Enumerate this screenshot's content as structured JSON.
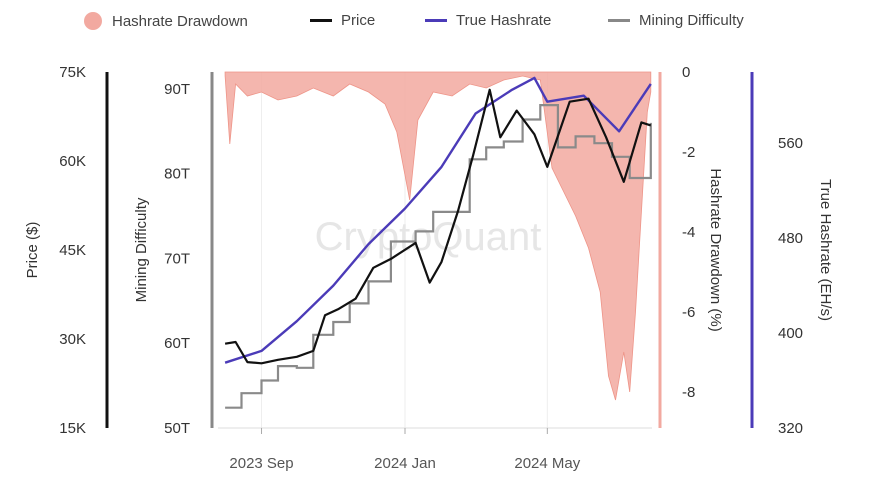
{
  "chart_data": {
    "type": "line",
    "watermark": "CryptoQuant",
    "legend": [
      {
        "name": "Hashrate Drawdown",
        "color": "#f2a9a0",
        "marker": "dot"
      },
      {
        "name": "Price",
        "color": "#111111",
        "marker": "line"
      },
      {
        "name": "True Hashrate",
        "color": "#4b3bb8",
        "marker": "line"
      },
      {
        "name": "Mining Difficulty",
        "color": "#888888",
        "marker": "line"
      }
    ],
    "x_ticks": [
      "2023 Sep",
      "2024 Jan",
      "2024 May"
    ],
    "axes": {
      "price": {
        "label": "Price ($)",
        "range": [
          15000,
          75000
        ],
        "ticks": [
          "15K",
          "30K",
          "45K",
          "60K",
          "75K"
        ],
        "color": "#111111"
      },
      "difficulty": {
        "label": "Mining Difficulty",
        "range": [
          50,
          92
        ],
        "unit": "T",
        "ticks": [
          "50T",
          "60T",
          "70T",
          "80T",
          "90T"
        ],
        "color": "#888888"
      },
      "drawdown": {
        "label": "Hashrate Drawdown (%)",
        "range": [
          -8.9,
          0
        ],
        "ticks": [
          "0",
          "-2",
          "-4",
          "-6",
          "-8"
        ],
        "color": "#f2a9a0"
      },
      "hashrate": {
        "label": "True Hashrate (EH/s)",
        "range": [
          320,
          620
        ],
        "ticks": [
          "320",
          "400",
          "480",
          "560"
        ],
        "color": "#4b3bb8"
      }
    },
    "series": {
      "price": [
        {
          "date": "2023-08-01",
          "value": 29200
        },
        {
          "date": "2023-08-10",
          "value": 29500
        },
        {
          "date": "2023-08-20",
          "value": 26100
        },
        {
          "date": "2023-09-01",
          "value": 25900
        },
        {
          "date": "2023-09-15",
          "value": 26500
        },
        {
          "date": "2023-10-01",
          "value": 27000
        },
        {
          "date": "2023-10-15",
          "value": 28000
        },
        {
          "date": "2023-10-25",
          "value": 34000
        },
        {
          "date": "2023-11-05",
          "value": 35000
        },
        {
          "date": "2023-11-20",
          "value": 36800
        },
        {
          "date": "2023-12-05",
          "value": 42000
        },
        {
          "date": "2023-12-20",
          "value": 43500
        },
        {
          "date": "2024-01-10",
          "value": 46200
        },
        {
          "date": "2024-01-22",
          "value": 39500
        },
        {
          "date": "2024-02-01",
          "value": 43000
        },
        {
          "date": "2024-02-15",
          "value": 51500
        },
        {
          "date": "2024-02-28",
          "value": 61000
        },
        {
          "date": "2024-03-13",
          "value": 72000
        },
        {
          "date": "2024-03-22",
          "value": 64000
        },
        {
          "date": "2024-04-05",
          "value": 68500
        },
        {
          "date": "2024-04-20",
          "value": 64500
        },
        {
          "date": "2024-05-01",
          "value": 59000
        },
        {
          "date": "2024-05-20",
          "value": 70000
        },
        {
          "date": "2024-06-05",
          "value": 70500
        },
        {
          "date": "2024-06-20",
          "value": 64000
        },
        {
          "date": "2024-07-05",
          "value": 56500
        },
        {
          "date": "2024-07-20",
          "value": 66500
        },
        {
          "date": "2024-07-28",
          "value": 66000
        }
      ],
      "true_hashrate": [
        {
          "date": "2023-08-01",
          "value": 375
        },
        {
          "date": "2023-09-01",
          "value": 385
        },
        {
          "date": "2023-10-01",
          "value": 410
        },
        {
          "date": "2023-11-01",
          "value": 440
        },
        {
          "date": "2023-12-01",
          "value": 475
        },
        {
          "date": "2024-01-01",
          "value": 505
        },
        {
          "date": "2024-02-01",
          "value": 540
        },
        {
          "date": "2024-03-01",
          "value": 585
        },
        {
          "date": "2024-04-01",
          "value": 605
        },
        {
          "date": "2024-04-20",
          "value": 615
        },
        {
          "date": "2024-05-01",
          "value": 595
        },
        {
          "date": "2024-06-01",
          "value": 600
        },
        {
          "date": "2024-07-01",
          "value": 570
        },
        {
          "date": "2024-07-28",
          "value": 610
        }
      ],
      "mining_difficulty": [
        {
          "date": "2023-08-01",
          "value": 52.4
        },
        {
          "date": "2023-08-15",
          "value": 54.1
        },
        {
          "date": "2023-09-01",
          "value": 55.6
        },
        {
          "date": "2023-09-15",
          "value": 57.3
        },
        {
          "date": "2023-10-01",
          "value": 57.1
        },
        {
          "date": "2023-10-15",
          "value": 61.0
        },
        {
          "date": "2023-11-01",
          "value": 62.5
        },
        {
          "date": "2023-11-15",
          "value": 64.7
        },
        {
          "date": "2023-12-01",
          "value": 67.3
        },
        {
          "date": "2023-12-20",
          "value": 72.0
        },
        {
          "date": "2024-01-10",
          "value": 73.2
        },
        {
          "date": "2024-01-25",
          "value": 75.5
        },
        {
          "date": "2024-02-10",
          "value": 75.5
        },
        {
          "date": "2024-02-25",
          "value": 81.7
        },
        {
          "date": "2024-03-10",
          "value": 83.1
        },
        {
          "date": "2024-03-25",
          "value": 83.8
        },
        {
          "date": "2024-04-10",
          "value": 86.4
        },
        {
          "date": "2024-04-25",
          "value": 88.1
        },
        {
          "date": "2024-05-10",
          "value": 83.1
        },
        {
          "date": "2024-05-25",
          "value": 84.4
        },
        {
          "date": "2024-06-10",
          "value": 83.6
        },
        {
          "date": "2024-06-25",
          "value": 82.0
        },
        {
          "date": "2024-07-10",
          "value": 79.5
        },
        {
          "date": "2024-07-28",
          "value": 86.0
        }
      ],
      "hashrate_drawdown": [
        {
          "date": "2023-08-01",
          "value": -0.1
        },
        {
          "date": "2023-08-05",
          "value": -1.8
        },
        {
          "date": "2023-08-10",
          "value": -0.3
        },
        {
          "date": "2023-08-20",
          "value": -0.6
        },
        {
          "date": "2023-09-01",
          "value": -0.5
        },
        {
          "date": "2023-09-15",
          "value": -0.7
        },
        {
          "date": "2023-10-01",
          "value": -0.6
        },
        {
          "date": "2023-10-15",
          "value": -0.4
        },
        {
          "date": "2023-11-01",
          "value": -0.6
        },
        {
          "date": "2023-11-15",
          "value": -0.3
        },
        {
          "date": "2023-12-01",
          "value": -0.5
        },
        {
          "date": "2023-12-15",
          "value": -0.8
        },
        {
          "date": "2023-12-25",
          "value": -1.5
        },
        {
          "date": "2024-01-05",
          "value": -3.2
        },
        {
          "date": "2024-01-12",
          "value": -1.2
        },
        {
          "date": "2024-01-25",
          "value": -0.5
        },
        {
          "date": "2024-02-10",
          "value": -0.6
        },
        {
          "date": "2024-02-25",
          "value": -0.3
        },
        {
          "date": "2024-03-10",
          "value": -0.4
        },
        {
          "date": "2024-03-25",
          "value": -0.2
        },
        {
          "date": "2024-04-10",
          "value": -0.1
        },
        {
          "date": "2024-04-25",
          "value": -0.2
        },
        {
          "date": "2024-05-05",
          "value": -2.4
        },
        {
          "date": "2024-05-15",
          "value": -3.0
        },
        {
          "date": "2024-05-25",
          "value": -3.6
        },
        {
          "date": "2024-06-05",
          "value": -4.4
        },
        {
          "date": "2024-06-15",
          "value": -5.5
        },
        {
          "date": "2024-06-22",
          "value": -7.6
        },
        {
          "date": "2024-06-28",
          "value": -8.2
        },
        {
          "date": "2024-07-05",
          "value": -7.0
        },
        {
          "date": "2024-07-10",
          "value": -8.0
        },
        {
          "date": "2024-07-15",
          "value": -6.0
        },
        {
          "date": "2024-07-20",
          "value": -3.5
        },
        {
          "date": "2024-07-25",
          "value": -1.0
        },
        {
          "date": "2024-07-28",
          "value": -0.5
        }
      ]
    }
  }
}
